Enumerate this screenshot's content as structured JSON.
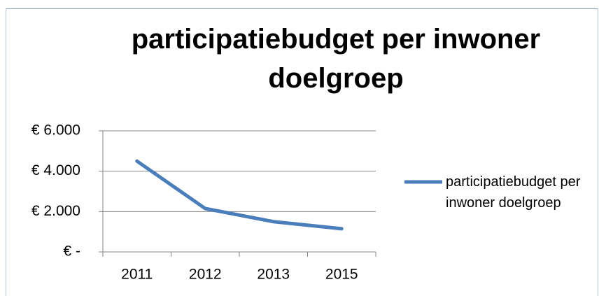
{
  "chart_data": {
    "type": "line",
    "title": "participatiebudget per inwoner doelgroep",
    "categories": [
      "2011",
      "2012",
      "2013",
      "2015"
    ],
    "series": [
      {
        "name": "participatiebudget per inwoner doelgroep",
        "color": "#4a7ebb",
        "values": [
          4500,
          2150,
          1500,
          1150
        ]
      }
    ],
    "ylim": [
      0,
      6000
    ],
    "yticks": [
      {
        "value": 0,
        "label": "€ -"
      },
      {
        "value": 2000,
        "label": "€ 2.000"
      },
      {
        "value": 4000,
        "label": "€ 4.000"
      },
      {
        "value": 6000,
        "label": "€ 6.000"
      }
    ],
    "grid": true,
    "legend": "right"
  }
}
